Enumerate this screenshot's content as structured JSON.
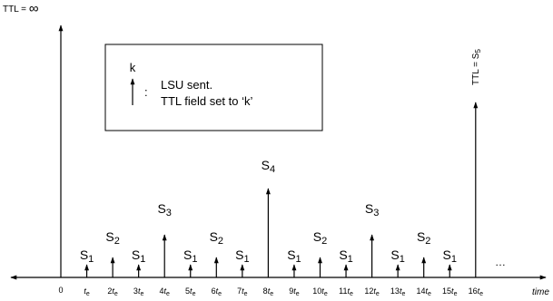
{
  "top_label": {
    "prefix": "TTL = ",
    "symbol": "∞"
  },
  "final_label": {
    "prefix": "TTL = S",
    "sub": "5"
  },
  "legend": {
    "k": "k",
    "colon": ":",
    "line1": "LSU sent.",
    "line2": "TTL field set to ‘k’"
  },
  "axis": {
    "origin": "0",
    "ellipsis": "…",
    "label": "time"
  },
  "ticks": [
    {
      "n": "",
      "s": "1"
    },
    {
      "n": "2",
      "s": "2"
    },
    {
      "n": "3",
      "s": "1"
    },
    {
      "n": "4",
      "s": "3"
    },
    {
      "n": "5",
      "s": "1"
    },
    {
      "n": "6",
      "s": "2"
    },
    {
      "n": "7",
      "s": "1"
    },
    {
      "n": "8",
      "s": "4"
    },
    {
      "n": "9",
      "s": "1"
    },
    {
      "n": "10",
      "s": "2"
    },
    {
      "n": "11",
      "s": "1"
    },
    {
      "n": "12",
      "s": "3"
    },
    {
      "n": "13",
      "s": "1"
    },
    {
      "n": "14",
      "s": "2"
    },
    {
      "n": "15",
      "s": "1"
    },
    {
      "n": "16",
      "s": ""
    }
  ],
  "arrow_levels": [
    1,
    2,
    1,
    3,
    1,
    2,
    1,
    4,
    1,
    2,
    1,
    3,
    1,
    2,
    1,
    5
  ]
}
